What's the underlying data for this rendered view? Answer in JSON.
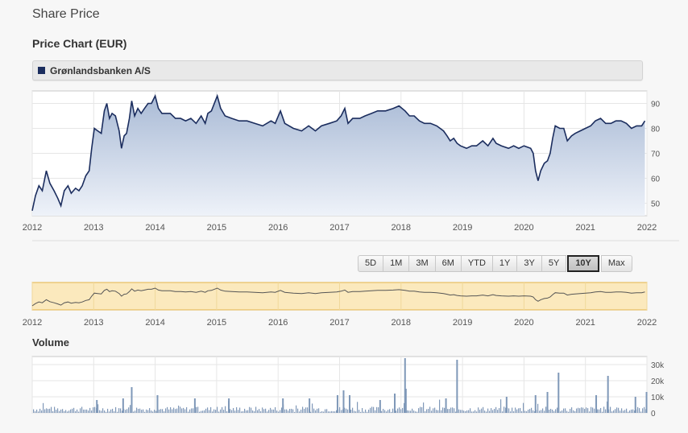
{
  "page": {
    "title": "Share Price",
    "subtitle": "Price Chart (EUR)",
    "volume_title": "Volume"
  },
  "legend": {
    "label": "Grønlandsbanken A/S",
    "color": "#1b2d5e"
  },
  "range_buttons": [
    "5D",
    "1M",
    "3M",
    "6M",
    "YTD",
    "1Y",
    "3Y",
    "5Y",
    "10Y",
    "Max"
  ],
  "active_range": "10Y",
  "colors": {
    "line": "#1b2d5e",
    "area_top": "#aabbd6",
    "area_bottom": "#eef2f9",
    "navigator_bg": "#fbe9bd",
    "navigator_border": "#e3b449",
    "volume": "#7f98b8"
  },
  "chart_data": [
    {
      "type": "area",
      "title": "Price Chart (EUR)",
      "series": [
        {
          "name": "Grønlandsbanken A/S",
          "points": [
            [
              "2012-01-01",
              47
            ],
            [
              "2012-01-20",
              53
            ],
            [
              "2012-02-10",
              57
            ],
            [
              "2012-03-01",
              55
            ],
            [
              "2012-03-25",
              63
            ],
            [
              "2012-04-15",
              58
            ],
            [
              "2012-05-10",
              55
            ],
            [
              "2012-06-01",
              52
            ],
            [
              "2012-06-20",
              49
            ],
            [
              "2012-07-10",
              55
            ],
            [
              "2012-08-01",
              57
            ],
            [
              "2012-08-20",
              54
            ],
            [
              "2012-09-15",
              56
            ],
            [
              "2012-10-05",
              55
            ],
            [
              "2012-10-25",
              57
            ],
            [
              "2012-11-15",
              61
            ],
            [
              "2012-12-05",
              63
            ],
            [
              "2012-12-20",
              72
            ],
            [
              "2013-01-05",
              80
            ],
            [
              "2013-01-25",
              79
            ],
            [
              "2013-02-15",
              78
            ],
            [
              "2013-03-05",
              87
            ],
            [
              "2013-03-20",
              90
            ],
            [
              "2013-04-05",
              84
            ],
            [
              "2013-04-20",
              86
            ],
            [
              "2013-05-10",
              85
            ],
            [
              "2013-06-01",
              79
            ],
            [
              "2013-06-15",
              72
            ],
            [
              "2013-07-01",
              77
            ],
            [
              "2013-07-15",
              78
            ],
            [
              "2013-08-01",
              84
            ],
            [
              "2013-08-15",
              91
            ],
            [
              "2013-09-01",
              85
            ],
            [
              "2013-09-20",
              88
            ],
            [
              "2013-10-10",
              86
            ],
            [
              "2013-10-30",
              88
            ],
            [
              "2013-11-20",
              90
            ],
            [
              "2013-12-10",
              90
            ],
            [
              "2014-01-01",
              93
            ],
            [
              "2014-01-20",
              88
            ],
            [
              "2014-02-10",
              86
            ],
            [
              "2014-03-05",
              86
            ],
            [
              "2014-04-01",
              86
            ],
            [
              "2014-05-01",
              84
            ],
            [
              "2014-06-01",
              84
            ],
            [
              "2014-07-01",
              83
            ],
            [
              "2014-08-01",
              84
            ],
            [
              "2014-09-01",
              82
            ],
            [
              "2014-10-01",
              85
            ],
            [
              "2014-10-25",
              82
            ],
            [
              "2014-11-10",
              86
            ],
            [
              "2014-12-01",
              87
            ],
            [
              "2015-01-05",
              93
            ],
            [
              "2015-01-25",
              88
            ],
            [
              "2015-02-20",
              85
            ],
            [
              "2015-04-01",
              84
            ],
            [
              "2015-05-15",
              83
            ],
            [
              "2015-07-01",
              83
            ],
            [
              "2015-08-15",
              82
            ],
            [
              "2015-10-01",
              81
            ],
            [
              "2015-11-20",
              83
            ],
            [
              "2015-12-15",
              82
            ],
            [
              "2016-01-15",
              87
            ],
            [
              "2016-02-10",
              82
            ],
            [
              "2016-04-01",
              80
            ],
            [
              "2016-05-20",
              79
            ],
            [
              "2016-07-01",
              81
            ],
            [
              "2016-08-10",
              79
            ],
            [
              "2016-09-15",
              81
            ],
            [
              "2016-11-01",
              82
            ],
            [
              "2016-12-15",
              83
            ],
            [
              "2017-01-10",
              85
            ],
            [
              "2017-02-01",
              88
            ],
            [
              "2017-02-20",
              82
            ],
            [
              "2017-03-20",
              84
            ],
            [
              "2017-05-01",
              84
            ],
            [
              "2017-06-01",
              85
            ],
            [
              "2017-07-10",
              86
            ],
            [
              "2017-08-15",
              87
            ],
            [
              "2017-10-01",
              87
            ],
            [
              "2017-11-15",
              88
            ],
            [
              "2017-12-20",
              89
            ],
            [
              "2018-01-25",
              87
            ],
            [
              "2018-02-20",
              85
            ],
            [
              "2018-03-20",
              85
            ],
            [
              "2018-04-20",
              83
            ],
            [
              "2018-05-20",
              82
            ],
            [
              "2018-06-25",
              82
            ],
            [
              "2018-08-01",
              81
            ],
            [
              "2018-09-10",
              79
            ],
            [
              "2018-10-01",
              77
            ],
            [
              "2018-10-20",
              75
            ],
            [
              "2018-11-10",
              76
            ],
            [
              "2018-11-30",
              74
            ],
            [
              "2018-12-20",
              73
            ],
            [
              "2019-01-25",
              72
            ],
            [
              "2019-02-25",
              73
            ],
            [
              "2019-03-25",
              73
            ],
            [
              "2019-05-01",
              75
            ],
            [
              "2019-06-01",
              73
            ],
            [
              "2019-07-01",
              76
            ],
            [
              "2019-07-20",
              74
            ],
            [
              "2019-08-20",
              73
            ],
            [
              "2019-10-01",
              72
            ],
            [
              "2019-11-01",
              73
            ],
            [
              "2019-12-01",
              72
            ],
            [
              "2020-01-01",
              73
            ],
            [
              "2020-02-10",
              72
            ],
            [
              "2020-02-25",
              70
            ],
            [
              "2020-03-10",
              63
            ],
            [
              "2020-03-25",
              59
            ],
            [
              "2020-04-10",
              63
            ],
            [
              "2020-05-01",
              66
            ],
            [
              "2020-05-20",
              67
            ],
            [
              "2020-06-05",
              70
            ],
            [
              "2020-06-20",
              76
            ],
            [
              "2020-07-05",
              81
            ],
            [
              "2020-08-01",
              80
            ],
            [
              "2020-08-25",
              80
            ],
            [
              "2020-09-15",
              75
            ],
            [
              "2020-10-10",
              77
            ],
            [
              "2020-11-01",
              78
            ],
            [
              "2020-12-01",
              79
            ],
            [
              "2021-01-01",
              80
            ],
            [
              "2021-02-01",
              81
            ],
            [
              "2021-03-01",
              83
            ],
            [
              "2021-04-01",
              84
            ],
            [
              "2021-05-01",
              82
            ],
            [
              "2021-06-01",
              82
            ],
            [
              "2021-07-01",
              83
            ],
            [
              "2021-08-01",
              83
            ],
            [
              "2021-09-01",
              82
            ],
            [
              "2021-10-01",
              80
            ],
            [
              "2021-11-01",
              81
            ],
            [
              "2021-12-01",
              81
            ],
            [
              "2021-12-20",
              83
            ]
          ]
        }
      ],
      "ylim": [
        45,
        95
      ],
      "yticks": [
        50,
        60,
        70,
        80,
        90
      ],
      "xticks": [
        "2012",
        "2013",
        "2014",
        "2015",
        "2016",
        "2017",
        "2018",
        "2019",
        "2020",
        "2021",
        "2022"
      ],
      "grid": true
    },
    {
      "type": "bar",
      "title": "Volume",
      "yticks": [
        "0",
        "10k",
        "20k",
        "30k"
      ],
      "ylim": [
        0,
        35000
      ],
      "spikes": [
        [
          "2013-01-15",
          8000
        ],
        [
          "2013-06-20",
          9000
        ],
        [
          "2013-08-10",
          16000
        ],
        [
          "2014-01-10",
          11000
        ],
        [
          "2014-08-20",
          9000
        ],
        [
          "2015-03-10",
          9000
        ],
        [
          "2016-01-25",
          9000
        ],
        [
          "2016-07-01",
          9000
        ],
        [
          "2016-12-15",
          11000
        ],
        [
          "2017-01-20",
          14000
        ],
        [
          "2017-02-25",
          11000
        ],
        [
          "2017-08-25",
          8000
        ],
        [
          "2017-11-20",
          12000
        ],
        [
          "2018-01-20",
          34000
        ],
        [
          "2018-01-25",
          15000
        ],
        [
          "2018-09-20",
          9000
        ],
        [
          "2018-11-25",
          33000
        ],
        [
          "2019-09-15",
          10000
        ],
        [
          "2020-03-05",
          11000
        ],
        [
          "2020-05-15",
          13000
        ],
        [
          "2020-07-20",
          25000
        ],
        [
          "2021-03-01",
          11000
        ],
        [
          "2021-05-10",
          23000
        ],
        [
          "2021-10-20",
          10000
        ],
        [
          "2021-12-25",
          13000
        ]
      ],
      "baseline": 3000
    }
  ]
}
